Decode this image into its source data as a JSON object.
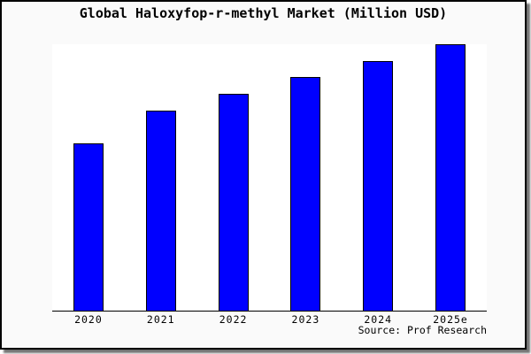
{
  "title": "Global Haloxyfop-r-methyl Market (Million USD)",
  "source": "Source: Prof Research",
  "colors": {
    "bar_fill": "#0000ff",
    "bar_edge": "#000000",
    "figure_bg": "#fafafa",
    "plot_bg": "#ffffff",
    "frame_border": "#000000",
    "axis_line": "#000000",
    "text": "#000000"
  },
  "chart_data": {
    "type": "bar",
    "title": "Global Haloxyfop-r-methyl Market (Million USD)",
    "categories": [
      "2020",
      "2021",
      "2022",
      "2023",
      "2024",
      "2025e"
    ],
    "values": [
      62.7,
      75.0,
      81.3,
      87.7,
      93.7,
      100
    ],
    "xlabel": "",
    "ylabel": "",
    "ylim": [
      0,
      100
    ],
    "grid": false,
    "legend": "none",
    "y_axis_tick_labels": "none",
    "value_note": "y-axis is unlabeled; values estimated from bar heights, normalized to 2025e = 100"
  }
}
